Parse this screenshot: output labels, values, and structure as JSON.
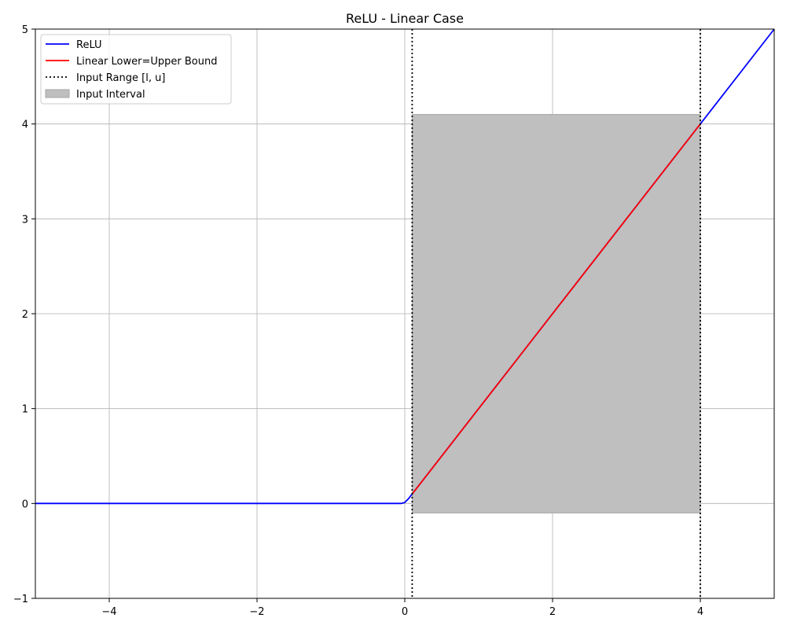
{
  "chart_data": {
    "type": "line",
    "title": "ReLU - Linear Case",
    "xlabel": "",
    "ylabel": "",
    "xlim": [
      -5,
      5
    ],
    "ylim": [
      -1,
      5
    ],
    "xticks": [
      -4,
      -2,
      0,
      2,
      4
    ],
    "yticks": [
      -1,
      0,
      1,
      2,
      3,
      4,
      5
    ],
    "xtick_labels": [
      "−4",
      "−2",
      "0",
      "2",
      "4"
    ],
    "ytick_labels": [
      "−1",
      "0",
      "1",
      "2",
      "3",
      "4",
      "5"
    ],
    "grid": true,
    "legend_position": "top-left",
    "series": [
      {
        "name": "ReLU",
        "color": "#0000ff",
        "style": "solid",
        "x": [
          -5,
          -0.05,
          0,
          0.05,
          5
        ],
        "y": [
          0,
          0,
          0.01,
          0.05,
          5
        ]
      },
      {
        "name": "Linear Lower=Upper Bound",
        "color": "#ff0000",
        "style": "solid",
        "x": [
          0.1,
          4
        ],
        "y": [
          0.1,
          4
        ]
      },
      {
        "name": "Input Range [l, u]",
        "color": "#000000",
        "style": "dotted",
        "vlines": [
          0.1,
          4
        ]
      }
    ],
    "shaded_region": {
      "name": "Input Interval",
      "color": "#bfbfbf",
      "edge_color": "#a6a6a6",
      "x": [
        0.1,
        4
      ],
      "y": [
        -0.1,
        4.1
      ]
    }
  }
}
